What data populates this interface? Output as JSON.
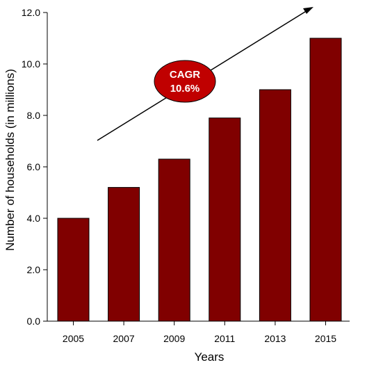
{
  "chart_data": {
    "type": "bar",
    "categories": [
      "2005",
      "2007",
      "2009",
      "2011",
      "2013",
      "2015"
    ],
    "values": [
      4.0,
      5.2,
      6.3,
      7.9,
      9.0,
      11.0
    ],
    "xlabel": "Years",
    "ylabel": "Number of households (in millions)",
    "ylim": [
      0,
      12
    ],
    "yticks": [
      "0.0",
      "2.0",
      "4.0",
      "6.0",
      "8.0",
      "10.0",
      "12.0"
    ],
    "grid": false,
    "bar_color": "#800000",
    "annotation": {
      "line1": "CAGR",
      "line2": "10.6%",
      "fill_color": "#c00000"
    }
  }
}
